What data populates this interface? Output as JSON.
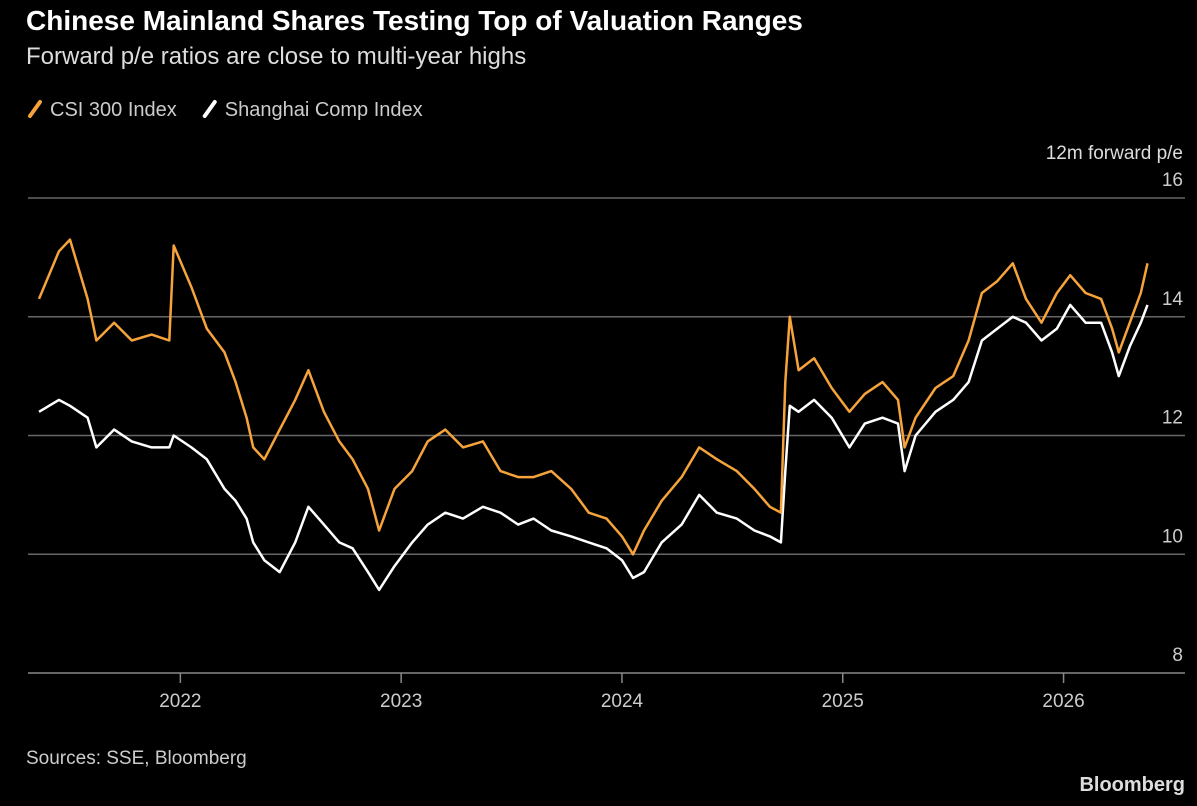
{
  "chart_data": {
    "type": "line",
    "title": "Chinese Mainland Shares Testing Top of Valuation Ranges",
    "subtitle": "Forward p/e ratios are close to multi-year highs",
    "y_label": "12m forward p/e",
    "source": "Sources: SSE, Bloomberg",
    "brand": "Bloomberg",
    "x": [
      2021.36,
      2021.45,
      2021.5,
      2021.58,
      2021.62,
      2021.7,
      2021.78,
      2021.87,
      2021.95,
      2021.97,
      2022.05,
      2022.12,
      2022.2,
      2022.25,
      2022.3,
      2022.33,
      2022.38,
      2022.45,
      2022.52,
      2022.58,
      2022.65,
      2022.72,
      2022.78,
      2022.85,
      2022.9,
      2022.97,
      2023.05,
      2023.12,
      2023.2,
      2023.28,
      2023.37,
      2023.45,
      2023.53,
      2023.6,
      2023.68,
      2023.77,
      2023.85,
      2023.93,
      2024.0,
      2024.05,
      2024.1,
      2024.18,
      2024.27,
      2024.35,
      2024.43,
      2024.52,
      2024.6,
      2024.67,
      2024.72,
      2024.74,
      2024.76,
      2024.8,
      2024.87,
      2024.95,
      2025.03,
      2025.1,
      2025.18,
      2025.25,
      2025.28,
      2025.33,
      2025.42,
      2025.5,
      2025.57,
      2025.63,
      2025.7,
      2025.77,
      2025.83,
      2025.9,
      2025.97,
      2026.03,
      2026.1,
      2026.17,
      2026.22,
      2026.25,
      2026.3,
      2026.35,
      2026.38
    ],
    "series": [
      {
        "name": "CSI 300 Index",
        "color": "#f5a33a",
        "values": [
          14.3,
          15.1,
          15.3,
          14.3,
          13.6,
          13.9,
          13.6,
          13.7,
          13.6,
          15.2,
          14.5,
          13.8,
          13.4,
          12.9,
          12.3,
          11.8,
          11.6,
          12.1,
          12.6,
          13.1,
          12.4,
          11.9,
          11.6,
          11.1,
          10.4,
          11.1,
          11.4,
          11.9,
          12.1,
          11.8,
          11.9,
          11.4,
          11.3,
          11.3,
          11.4,
          11.1,
          10.7,
          10.6,
          10.3,
          10.0,
          10.4,
          10.9,
          11.3,
          11.8,
          11.6,
          11.4,
          11.1,
          10.8,
          10.7,
          12.9,
          14.0,
          13.1,
          13.3,
          12.8,
          12.4,
          12.7,
          12.9,
          12.6,
          11.8,
          12.3,
          12.8,
          13.0,
          13.6,
          14.4,
          14.6,
          14.9,
          14.3,
          13.9,
          14.4,
          14.7,
          14.4,
          14.3,
          13.8,
          13.4,
          13.9,
          14.4,
          14.9
        ]
      },
      {
        "name": "Shanghai Comp Index",
        "color": "#ffffff",
        "values": [
          12.4,
          12.6,
          12.5,
          12.3,
          11.8,
          12.1,
          11.9,
          11.8,
          11.8,
          12.0,
          11.8,
          11.6,
          11.1,
          10.9,
          10.6,
          10.2,
          9.9,
          9.7,
          10.2,
          10.8,
          10.5,
          10.2,
          10.1,
          9.7,
          9.4,
          9.8,
          10.2,
          10.5,
          10.7,
          10.6,
          10.8,
          10.7,
          10.5,
          10.6,
          10.4,
          10.3,
          10.2,
          10.1,
          9.9,
          9.6,
          9.7,
          10.2,
          10.5,
          11.0,
          10.7,
          10.6,
          10.4,
          10.3,
          10.2,
          11.4,
          12.5,
          12.4,
          12.6,
          12.3,
          11.8,
          12.2,
          12.3,
          12.2,
          11.4,
          12.0,
          12.4,
          12.6,
          12.9,
          13.6,
          13.8,
          14.0,
          13.9,
          13.6,
          13.8,
          14.2,
          13.9,
          13.9,
          13.4,
          13.0,
          13.5,
          13.9,
          14.2
        ]
      }
    ],
    "xlim": [
      2021.31,
      2026.55
    ],
    "xticks": [
      2022,
      2023,
      2024,
      2025,
      2026
    ],
    "ylim": [
      8,
      16
    ],
    "yticks": [
      8,
      10,
      12,
      14,
      16
    ],
    "grid": true
  }
}
